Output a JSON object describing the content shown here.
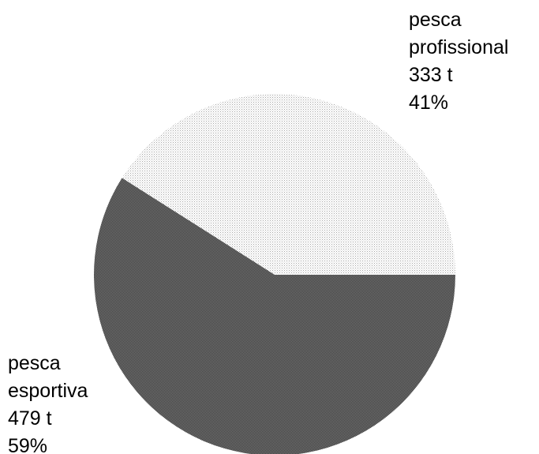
{
  "chart_data": {
    "type": "pie",
    "title": "",
    "slices": [
      {
        "label_lines": [
          "pesca",
          "profissional"
        ],
        "value": 333,
        "value_text": "333 t",
        "percent": 41,
        "percent_text": "41%",
        "pattern_color": "#a6a6a6"
      },
      {
        "label_lines": [
          "pesca",
          "esportiva"
        ],
        "value": 479,
        "value_text": "479 t",
        "percent": 59,
        "percent_text": "59%",
        "pattern_color": "#4a4a4a"
      }
    ]
  }
}
